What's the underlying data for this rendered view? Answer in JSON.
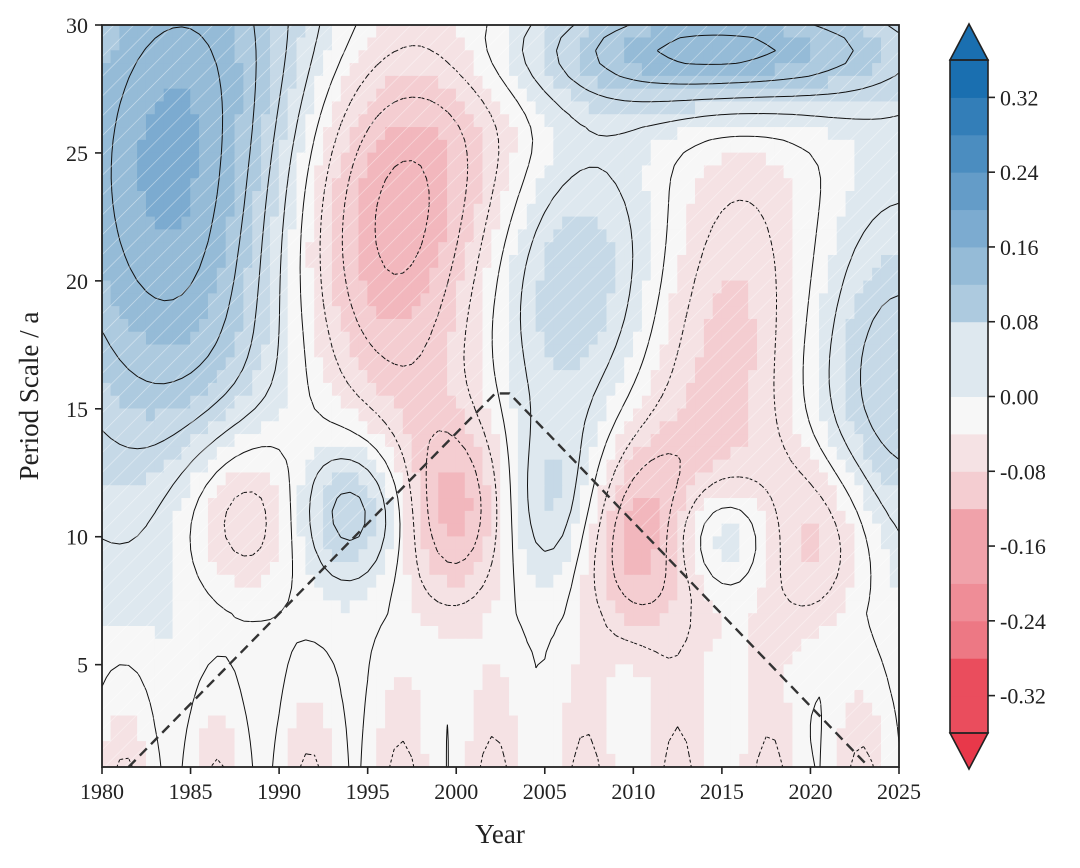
{
  "chart_data": {
    "type": "heatmap",
    "subtype": "wavelet-power-contour",
    "title": "",
    "xlabel": "Year",
    "ylabel": "Period Scale / a",
    "xlim": [
      1980,
      2025
    ],
    "ylim": [
      1,
      30
    ],
    "x_ticks": [
      1980,
      1985,
      1990,
      1995,
      2000,
      2005,
      2010,
      2015,
      2020,
      2025
    ],
    "y_ticks": [
      5,
      10,
      15,
      20,
      25,
      30
    ],
    "colorbar": {
      "ticks": [
        0.32,
        0.24,
        0.16,
        0.08,
        0.0,
        -0.08,
        -0.16,
        -0.24,
        -0.32
      ],
      "tick_labels": [
        "0.32",
        "0.24",
        "0.16",
        "0.08",
        "0.00",
        "-0.08",
        "-0.16",
        "-0.24",
        "-0.32"
      ],
      "range": [
        -0.36,
        0.36
      ],
      "extend": "both",
      "positive_color": "#1a6fb0",
      "negative_color": "#e8384a",
      "zero_color": "#f7f7f7"
    },
    "features": [
      {
        "sign": "positive",
        "center": [
          1985.5,
          24
        ],
        "peak": 0.22,
        "period_range": [
          9,
          30
        ]
      },
      {
        "sign": "negative",
        "center": [
          1996.5,
          22
        ],
        "peak": -0.22,
        "period_range": [
          16,
          30
        ]
      },
      {
        "sign": "positive",
        "center": [
          2006,
          20
        ],
        "peak": 0.16,
        "period_range": [
          16,
          27
        ]
      },
      {
        "sign": "positive",
        "center": [
          2015,
          29
        ],
        "peak": 0.18,
        "period_range": [
          26,
          30
        ]
      },
      {
        "sign": "negative",
        "center": [
          2015,
          18
        ],
        "peak": -0.12,
        "period_range": [
          12,
          25
        ]
      },
      {
        "sign": "negative",
        "center": [
          1988.5,
          11
        ],
        "peak": -0.12,
        "period_range": [
          8,
          14
        ]
      },
      {
        "sign": "positive",
        "center": [
          1994.5,
          11
        ],
        "peak": 0.14,
        "period_range": [
          8,
          13
        ]
      },
      {
        "sign": "negative",
        "center": [
          2000,
          11
        ],
        "peak": -0.16,
        "period_range": [
          8,
          14
        ]
      },
      {
        "sign": "positive",
        "center": [
          2005,
          11
        ],
        "peak": 0.12,
        "period_range": [
          8,
          14
        ]
      },
      {
        "sign": "negative",
        "center": [
          2010.5,
          10
        ],
        "peak": -0.16,
        "period_range": [
          7,
          13
        ]
      },
      {
        "sign": "positive",
        "center": [
          2014.5,
          10
        ],
        "peak": 0.12,
        "period_range": [
          8,
          12
        ]
      },
      {
        "sign": "negative",
        "center": [
          2020,
          10
        ],
        "peak": -0.1,
        "period_range": [
          7,
          13
        ]
      },
      {
        "sign": "positive",
        "center": [
          2024,
          16
        ],
        "peak": 0.12,
        "period_range": [
          9,
          22
        ]
      }
    ],
    "cone_of_influence": {
      "x": [
        1981.5,
        2002.2,
        2003,
        2023.3
      ],
      "y": [
        1,
        15.6,
        15.6,
        1
      ],
      "style": "dashed"
    },
    "significance_hatching": "outside cone (upper region)"
  }
}
